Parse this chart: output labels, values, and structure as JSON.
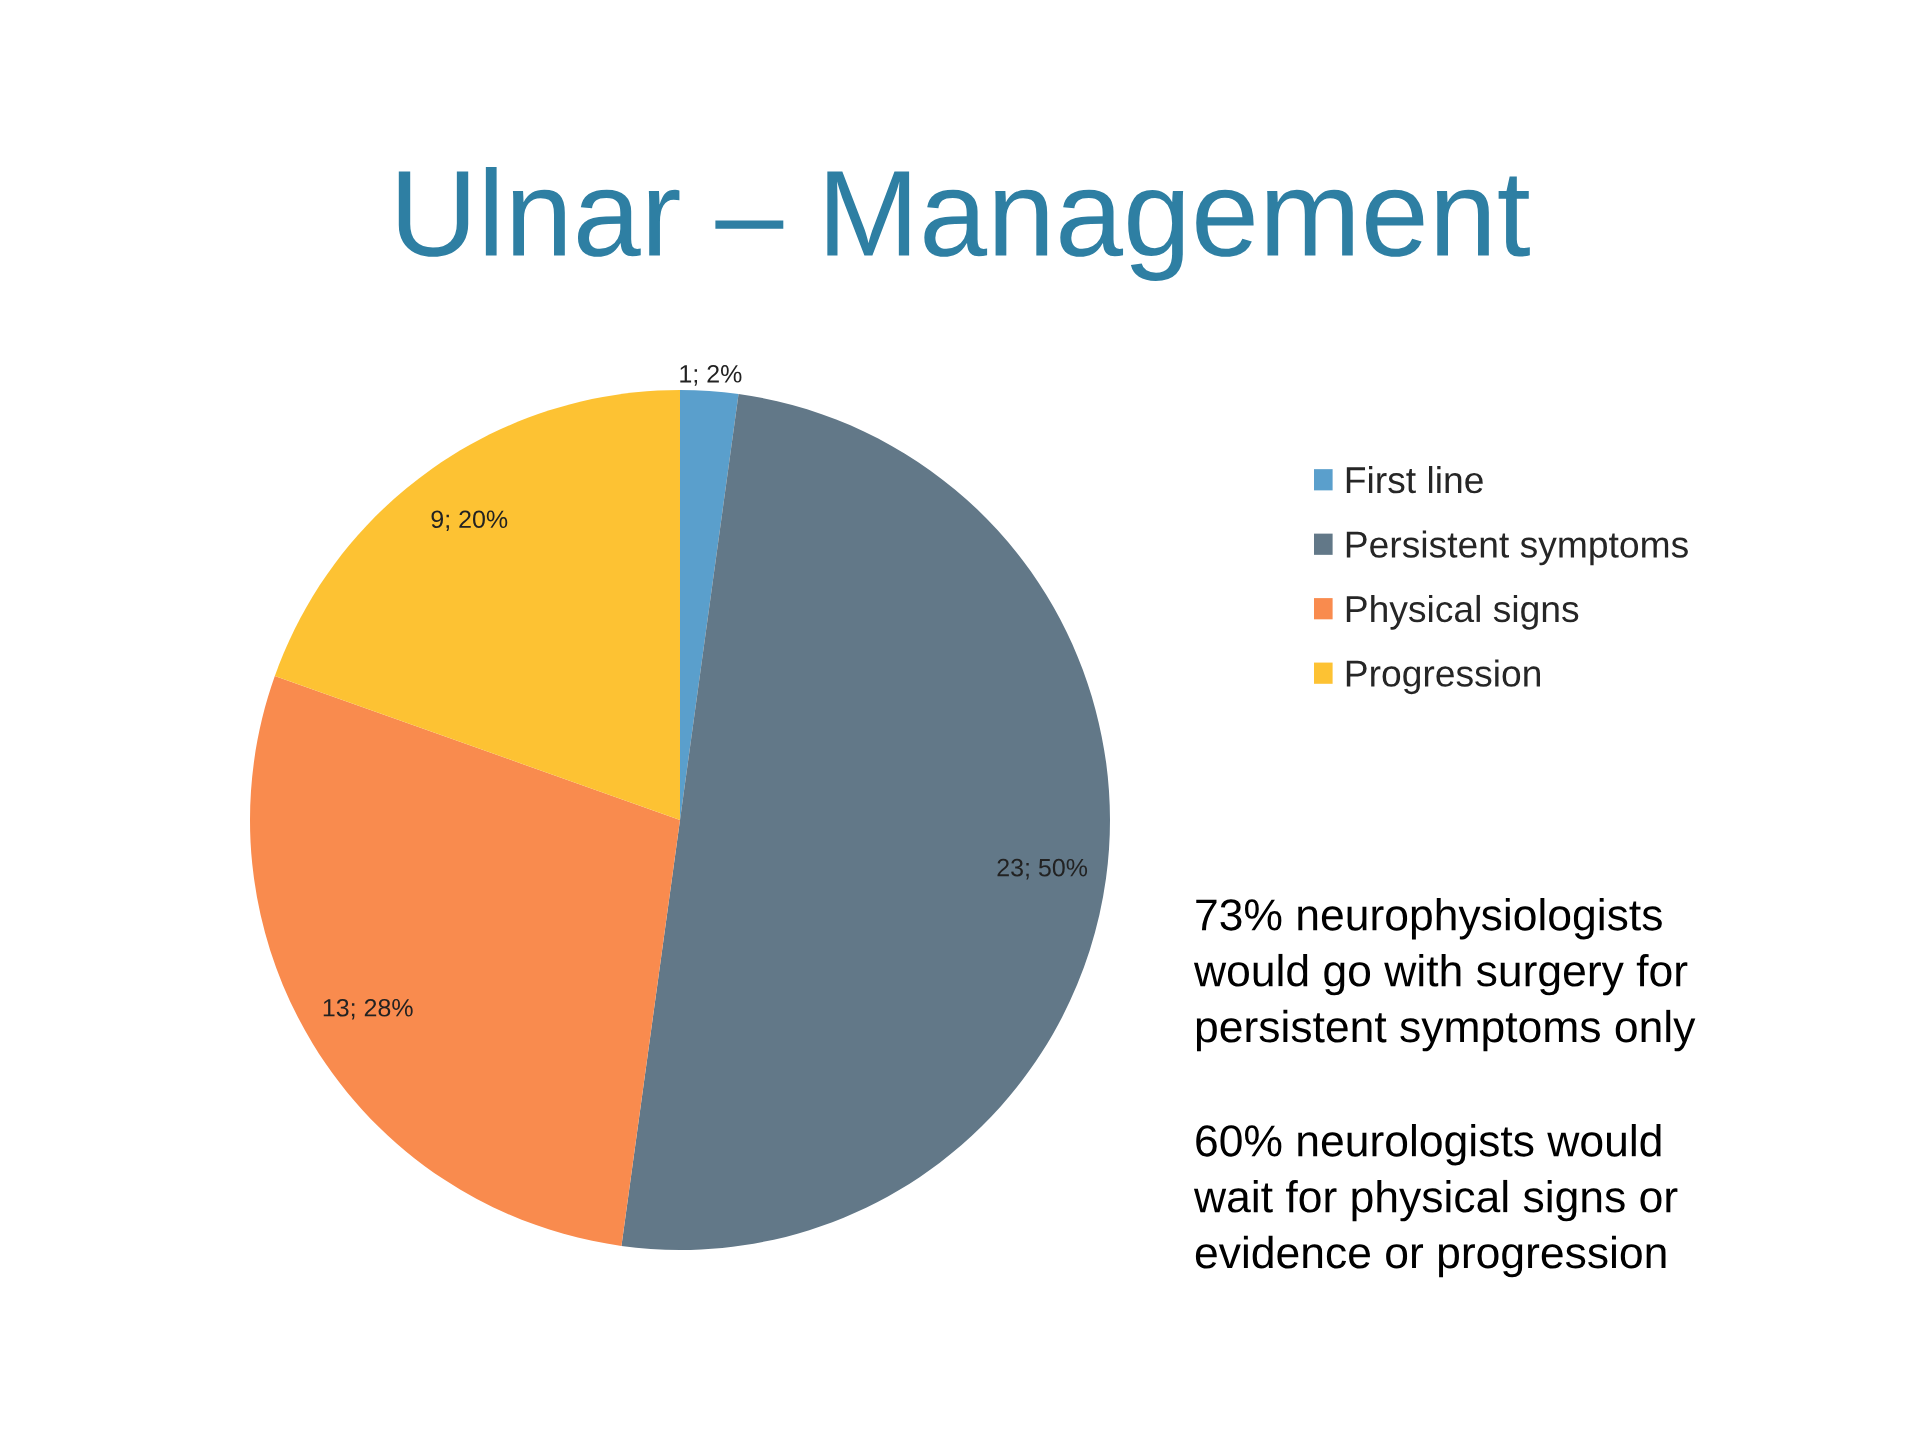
{
  "chart_data": {
    "type": "pie",
    "title": "Ulnar – Management",
    "categories": [
      "First line",
      "Persistent symptoms",
      "Physical signs",
      "Progression"
    ],
    "values": [
      1,
      23,
      13,
      9
    ],
    "colors": [
      "#5a9fcc",
      "#627888",
      "#f98b4e",
      "#fdc233"
    ],
    "value_labels": [
      "1; 2%",
      "23; 50%",
      "13; 28%",
      "9; 20%"
    ],
    "legend": "right",
    "annotations": [
      "73% neurophysiologists would go with surgery for persistent symptoms only",
      "60% neurologists would wait for physical signs or evidence or progression"
    ]
  }
}
